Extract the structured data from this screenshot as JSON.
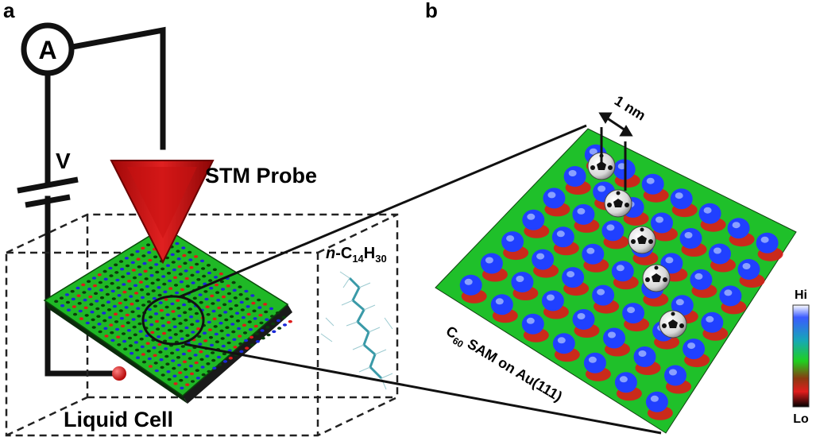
{
  "panel_a": {
    "letter": "a",
    "ammeter_symbol": "A",
    "voltage_label": "V",
    "probe_label": "STM Probe",
    "cell_label": "Liquid Cell",
    "solvent": {
      "prefix": "n",
      "dash": "-C",
      "sub1": "14",
      "h": "H",
      "sub2": "30"
    }
  },
  "panel_b": {
    "letter": "b",
    "scale_label": "1 nm",
    "surface_label": {
      "c": "C",
      "sub": "60",
      "rest": " SAM on Au(111)"
    },
    "colorbar": {
      "high": "Hi",
      "low": "Lo",
      "colors": [
        "#ffffff",
        "#3b5bff",
        "#16a8b5",
        "#1fd01f",
        "#8a3a10",
        "#e11d1d",
        "#000000"
      ]
    }
  },
  "colors": {
    "probe": "#d01515",
    "wire": "#111111",
    "surface_green": "#22c02a",
    "surface_red": "#dd1a1a",
    "surface_blue": "#2040ff"
  }
}
